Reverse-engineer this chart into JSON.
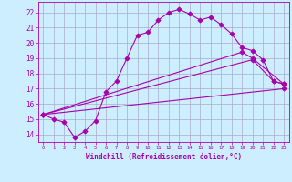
{
  "xlabel": "Windchill (Refroidissement éolien,°C)",
  "bg_color": "#cceeff",
  "line_color": "#aa00aa",
  "grid_color": "#aaaacc",
  "x_ticks": [
    0,
    1,
    2,
    3,
    4,
    5,
    6,
    7,
    8,
    9,
    10,
    11,
    12,
    13,
    14,
    15,
    16,
    17,
    18,
    19,
    20,
    21,
    22,
    23
  ],
  "y_ticks": [
    14,
    15,
    16,
    17,
    18,
    19,
    20,
    21,
    22
  ],
  "ylim": [
    13.5,
    22.7
  ],
  "xlim": [
    -0.5,
    23.5
  ],
  "line1_x": [
    0,
    1,
    2,
    3,
    4,
    5,
    6,
    7,
    8,
    9,
    10,
    11,
    12,
    13,
    14,
    15,
    16,
    17,
    18,
    19,
    20,
    21,
    22,
    23
  ],
  "line1_y": [
    15.3,
    15.0,
    14.8,
    13.8,
    14.2,
    14.9,
    16.8,
    17.5,
    19.0,
    20.5,
    20.7,
    21.5,
    22.0,
    22.2,
    21.9,
    21.5,
    21.7,
    21.2,
    20.6,
    19.7,
    19.5,
    18.9,
    17.5,
    17.3
  ],
  "line2_x": [
    0,
    19,
    20,
    23
  ],
  "line2_y": [
    15.3,
    19.4,
    19.0,
    17.3
  ],
  "line3_x": [
    0,
    20,
    22,
    23
  ],
  "line3_y": [
    15.3,
    18.9,
    17.5,
    17.3
  ],
  "line4_x": [
    0,
    23
  ],
  "line4_y": [
    15.3,
    17.0
  ]
}
